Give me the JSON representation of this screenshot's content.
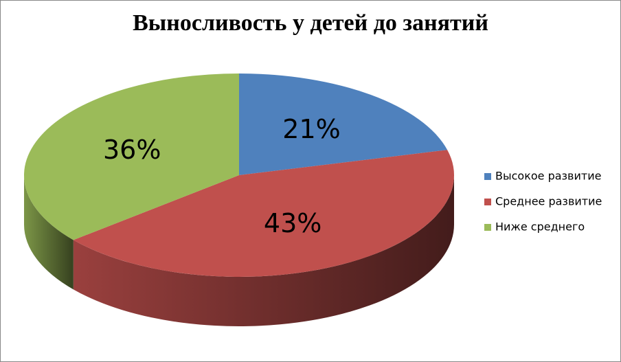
{
  "chart_data": {
    "type": "pie",
    "title": "Выносливость у детей до занятий",
    "categories": [
      "Высокое развитие",
      "Среднее развитие",
      "Ниже среднего"
    ],
    "values": [
      21,
      43,
      36
    ],
    "value_labels": [
      "21%",
      "43%",
      "36%"
    ],
    "colors": [
      "#4f81bd",
      "#c0504d",
      "#9bbb59"
    ],
    "legend": "right"
  }
}
